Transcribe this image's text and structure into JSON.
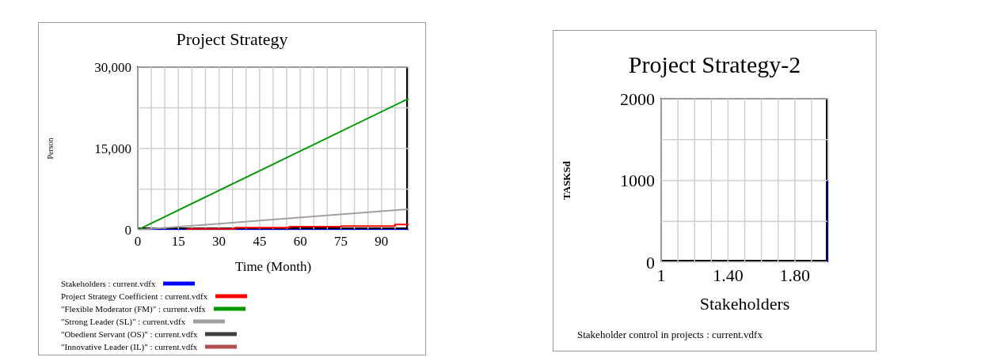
{
  "chart_data": [
    {
      "type": "line",
      "title": "Project Strategy",
      "xlabel": "Time (Month)",
      "ylabel": "Person",
      "xlim": [
        0,
        100
      ],
      "xticks": [
        0,
        {
          "value": 5,
          "label": null
        },
        {
          "value": 10,
          "label": null
        },
        15,
        {
          "value": 20,
          "label": null
        },
        {
          "value": 25,
          "label": null
        },
        30,
        {
          "value": 35,
          "label": null
        },
        {
          "value": 40,
          "label": null
        },
        45,
        {
          "value": 50,
          "label": null
        },
        {
          "value": 55,
          "label": null
        },
        60,
        {
          "value": 65,
          "label": null
        },
        {
          "value": 70,
          "label": null
        },
        75,
        {
          "value": 80,
          "label": null
        },
        {
          "value": 85,
          "label": null
        },
        90,
        {
          "value": 95,
          "label": null
        }
      ],
      "ylim": [
        0,
        30000
      ],
      "yticks": [
        0,
        {
          "value": 7500,
          "label": null
        },
        {
          "value": 15000,
          "label": "15,000"
        },
        {
          "value": 22500,
          "label": null
        },
        {
          "value": 30000,
          "label": "30,000"
        }
      ],
      "grid": true,
      "legend": "bottom",
      "marker": "none",
      "line_style": "solid",
      "series": [
        {
          "name": "Stakeholders : current.vdfx",
          "color": "#0000ff",
          "x": [
            0,
            100
          ],
          "values": [
            0,
            0
          ]
        },
        {
          "name": "Project Strategy Coefficient : current.vdfx",
          "color": "#ff0000",
          "x": [
            18,
            36,
            36,
            56,
            56,
            75,
            75,
            95,
            95,
            100
          ],
          "values": [
            200,
            200,
            400,
            400,
            600,
            600,
            700,
            700,
            1000,
            1000
          ]
        },
        {
          "name": "\"Flexible Moderator (FM)\" : current.vdfx",
          "color": "#009900",
          "x": [
            0,
            100
          ],
          "values": [
            0,
            24200
          ]
        },
        {
          "name": "\"Strong Leader (SL)\" : current.vdfx",
          "color": "#a0a0a0",
          "x": [
            0,
            100
          ],
          "values": [
            0,
            3800
          ]
        },
        {
          "name": "\"Obedient Servant (OS)\" : current.vdfx",
          "color": "#404040",
          "values": [
            null
          ]
        },
        {
          "name": "\"Innovative Leader (IL)\" : current.vdfx",
          "color": "#b05050",
          "values": [
            null
          ]
        }
      ]
    },
    {
      "type": "line",
      "title": "Project Strategy-2",
      "xlabel": "Stakeholders",
      "ylabel": "TASKSd",
      "xlim": [
        1,
        2
      ],
      "xticks": [
        1,
        {
          "value": 1.1,
          "label": null
        },
        {
          "value": 1.2,
          "label": null
        },
        {
          "value": 1.3,
          "label": null
        },
        {
          "value": 1.4,
          "label": "1.40"
        },
        {
          "value": 1.5,
          "label": null
        },
        {
          "value": 1.6,
          "label": null
        },
        {
          "value": 1.7,
          "label": null
        },
        {
          "value": 1.8,
          "label": "1.80"
        },
        {
          "value": 1.9,
          "label": null
        }
      ],
      "ylim": [
        0,
        2000
      ],
      "yticks": [
        0,
        {
          "value": 500,
          "label": null
        },
        1000,
        {
          "value": 1500,
          "label": null
        },
        2000
      ],
      "grid": true,
      "legend": "bottom",
      "marker": "none",
      "line_style": "solid",
      "series": [
        {
          "name": "Stakeholder control in projects : current.vdfx",
          "color": "#0000ff",
          "x": [
            2,
            2
          ],
          "values": [
            0,
            1000
          ]
        }
      ]
    }
  ]
}
